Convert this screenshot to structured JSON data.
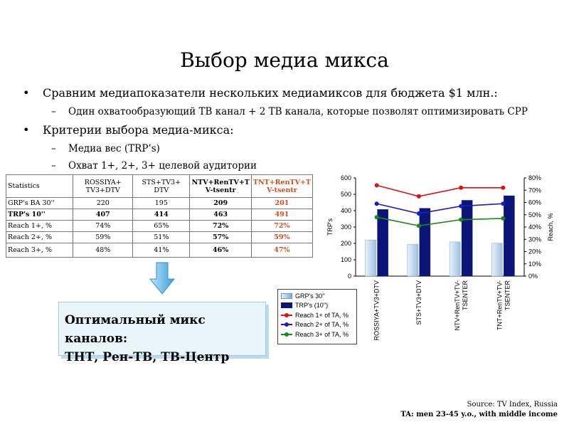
{
  "slide": {
    "title": "Выбор медиа микса",
    "bullets": [
      {
        "text": "Сравним медиапоказатели нескольких медиамиксов для бюджета $1 млн.:",
        "sub": [
          "Один охватообразующий ТВ канал + 2 ТВ канала, которые позволят оптимизировать  СРР"
        ]
      },
      {
        "text": "Критерии выбора медиа-микса:",
        "sub": [
          "Медиа вес (TRP’s)",
          "Охват 1+, 2+, 3+ целевой аудитории"
        ]
      }
    ],
    "optimal_box": {
      "line1": "Оптимальный микс каналов:",
      "line2": "ТНТ, Рен-ТВ, ТВ-Центр"
    },
    "source": "Source: TV Index, Russia",
    "ta": "TA: men 23-45 y.o., with middle income"
  },
  "table": {
    "headers": [
      "Statistics",
      "ROSSIYA+ TV3+DTV",
      "STS+TV3+ DTV",
      "NTV+RenTV+T V-tsentr",
      "TNT+RenTV+T V-tsentr"
    ],
    "rows": [
      {
        "label": "GRP's BA 30''",
        "values": [
          "220",
          "195",
          "209",
          "201"
        ]
      },
      {
        "label": "TRP's 10''",
        "values": [
          "407",
          "414",
          "463",
          "491"
        ]
      },
      {
        "label": "Reach 1+, %",
        "values": [
          "74%",
          "65%",
          "72%",
          "72%"
        ]
      },
      {
        "label": "Reach 2+, %",
        "values": [
          "59%",
          "51%",
          "57%",
          "59%"
        ]
      },
      {
        "label": "Reach 3+, %",
        "values": [
          "48%",
          "41%",
          "46%",
          "47%"
        ]
      }
    ]
  },
  "colors": {
    "grp_bar": "#9ec1e0",
    "trp_bar": "#0a1577",
    "reach1": "#e01010",
    "reach2": "#1a1acc",
    "reach3": "#1a8a1a",
    "highlight": "#d44a1a"
  },
  "chart_data": {
    "type": "bar",
    "categories": [
      "ROSSIYA+TV3+DTV",
      "STS+TV3+DTV",
      "NTV+RenTV+TV-TSENTER",
      "TNT+RenTV+TV-TSENTER"
    ],
    "series": [
      {
        "name": "GRP's 30''",
        "kind": "bar",
        "axis": "left",
        "values": [
          220,
          195,
          209,
          201
        ]
      },
      {
        "name": "TRP's (10'')",
        "kind": "bar",
        "axis": "left",
        "values": [
          407,
          414,
          463,
          491
        ]
      },
      {
        "name": "Reach 1+ of TA, %",
        "kind": "line",
        "axis": "right",
        "values": [
          74,
          65,
          72,
          72
        ]
      },
      {
        "name": "Reach 2+ of TA, %",
        "kind": "line",
        "axis": "right",
        "values": [
          59,
          51,
          57,
          59
        ]
      },
      {
        "name": "Reach 3+ of TA, %",
        "kind": "line",
        "axis": "right",
        "values": [
          48,
          41,
          46,
          47
        ]
      }
    ],
    "ylabel_left": "TRP's",
    "ylabel_right": "Reach, %",
    "ylim_left": [
      0,
      600
    ],
    "ylim_right": [
      0,
      80
    ],
    "yticks_left": [
      "0",
      "100",
      "200",
      "300",
      "400",
      "500",
      "600"
    ],
    "yticks_right": [
      "0%",
      "10%",
      "20%",
      "30%",
      "40%",
      "50%",
      "60%",
      "70%",
      "80%"
    ],
    "grid": false,
    "legend": "bottom-left"
  }
}
